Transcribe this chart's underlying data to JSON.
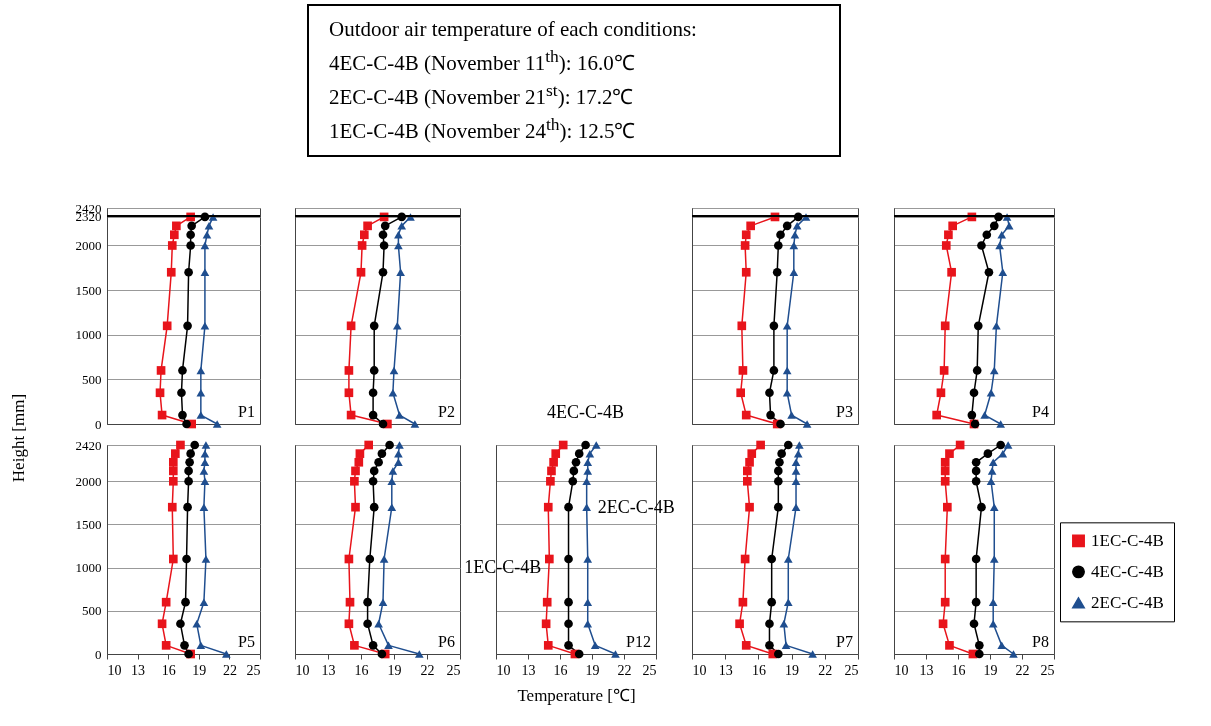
{
  "chart_data": [
    {
      "type": "line",
      "title": "P1",
      "ylabel": "Height [mm]",
      "annotations": [
        "Outdoor air temperature of each conditions:",
        "4EC-C-4B (November 11$^{th}$): 16.0℃",
        "2EC-C-4B (November 21$^{st}$): 17.2℃",
        "1EC-C-4B (November 24$^{th}$): 12.5℃"
      ],
      "xlim": [
        10,
        25
      ],
      "xticks": [
        10,
        13,
        16,
        19,
        22,
        25
      ],
      "ylim": [
        0,
        2420
      ],
      "yticks": [
        0,
        500,
        1000,
        1500,
        2000,
        2320,
        2420
      ],
      "grid": "y",
      "tick_labels": "y",
      "ref_lines": [
        {
          "axis": "y",
          "value": 2330
        }
      ],
      "series": [
        {
          "color": "#e8141b",
          "marker": "square",
          "x": [
            18.2,
            16.8,
            16.6,
            16.4,
            16.3,
            15.9,
            15.3,
            15.2,
            15.4,
            18.3
          ],
          "values": [
            2320,
            2220,
            2120,
            2000,
            1700,
            1100,
            600,
            350,
            100,
            0
          ]
        },
        {
          "color": "#000000",
          "marker": "circle",
          "x": [
            19.6,
            18.3,
            18.2,
            18.2,
            18.0,
            17.9,
            17.4,
            17.3,
            17.4,
            17.8
          ],
          "values": [
            2320,
            2220,
            2120,
            2000,
            1700,
            1100,
            600,
            350,
            100,
            0
          ]
        },
        {
          "color": "#1f4e8f",
          "marker": "triangle",
          "x": [
            20.4,
            20.0,
            19.8,
            19.6,
            19.6,
            19.6,
            19.2,
            19.2,
            19.2,
            20.8
          ],
          "values": [
            2320,
            2220,
            2120,
            2000,
            1700,
            1100,
            600,
            350,
            100,
            0
          ]
        }
      ]
    },
    {
      "type": "line",
      "title": "P2",
      "xlim": [
        10,
        25
      ],
      "xticks": [
        10,
        13,
        16,
        19,
        22,
        25
      ],
      "ylim": [
        0,
        2420
      ],
      "yticks": [
        0,
        500,
        1000,
        1500,
        2000,
        2320,
        2420
      ],
      "grid": "y",
      "tick_labels": false,
      "ref_lines": [
        {
          "axis": "y",
          "value": 2330
        }
      ],
      "series": [
        {
          "color": "#e8141b",
          "marker": "square",
          "x": [
            18.1,
            16.6,
            16.3,
            16.1,
            16.0,
            15.1,
            14.9,
            14.9,
            15.1,
            18.4
          ],
          "values": [
            2320,
            2220,
            2120,
            2000,
            1700,
            1100,
            600,
            350,
            100,
            0
          ]
        },
        {
          "color": "#000000",
          "marker": "circle",
          "x": [
            19.7,
            18.2,
            18.0,
            18.1,
            18.0,
            17.2,
            17.2,
            17.1,
            17.1,
            18.0
          ],
          "values": [
            2320,
            2220,
            2120,
            2000,
            1700,
            1100,
            600,
            350,
            100,
            0
          ]
        },
        {
          "color": "#1f4e8f",
          "marker": "triangle",
          "x": [
            20.5,
            19.7,
            19.4,
            19.4,
            19.6,
            19.3,
            19.0,
            18.9,
            19.5,
            20.9
          ],
          "values": [
            2320,
            2220,
            2120,
            2000,
            1700,
            1100,
            600,
            350,
            100,
            0
          ]
        }
      ]
    },
    {
      "type": "line",
      "title": "P3",
      "xlim": [
        10,
        25
      ],
      "xticks": [
        10,
        13,
        16,
        19,
        22,
        25
      ],
      "ylim": [
        0,
        2420
      ],
      "yticks": [
        0,
        500,
        1000,
        1500,
        2000,
        2320,
        2420
      ],
      "grid": "y",
      "tick_labels": false,
      "ref_lines": [
        {
          "axis": "y",
          "value": 2330
        }
      ],
      "series": [
        {
          "color": "#e8141b",
          "marker": "square",
          "x": [
            17.5,
            15.3,
            14.9,
            14.8,
            14.9,
            14.5,
            14.6,
            14.4,
            14.9,
            17.7
          ],
          "values": [
            2320,
            2220,
            2120,
            2000,
            1700,
            1100,
            600,
            350,
            100,
            0
          ]
        },
        {
          "color": "#000000",
          "marker": "circle",
          "x": [
            19.6,
            18.6,
            18.0,
            17.8,
            17.7,
            17.4,
            17.4,
            17.0,
            17.1,
            18.0
          ],
          "values": [
            2320,
            2220,
            2120,
            2000,
            1700,
            1100,
            600,
            350,
            100,
            0
          ]
        },
        {
          "color": "#1f4e8f",
          "marker": "triangle",
          "x": [
            20.3,
            19.5,
            19.3,
            19.2,
            19.2,
            18.6,
            18.6,
            18.6,
            19.0,
            20.4
          ],
          "values": [
            2320,
            2220,
            2120,
            2000,
            1700,
            1100,
            600,
            350,
            100,
            0
          ]
        }
      ]
    },
    {
      "type": "line",
      "title": "P4",
      "xlim": [
        10,
        25
      ],
      "xticks": [
        10,
        13,
        16,
        19,
        22,
        25
      ],
      "ylim": [
        0,
        2420
      ],
      "yticks": [
        0,
        500,
        1000,
        1500,
        2000,
        2320,
        2420
      ],
      "grid": "y",
      "tick_labels": false,
      "ref_lines": [
        {
          "axis": "y",
          "value": 2330
        }
      ],
      "series": [
        {
          "color": "#e8141b",
          "marker": "square",
          "x": [
            17.3,
            15.5,
            15.1,
            14.9,
            15.4,
            14.8,
            14.7,
            14.4,
            14.0,
            17.5
          ],
          "values": [
            2320,
            2220,
            2120,
            2000,
            1700,
            1100,
            600,
            350,
            100,
            0
          ]
        },
        {
          "color": "#000000",
          "marker": "circle",
          "x": [
            19.8,
            19.4,
            18.7,
            18.2,
            18.9,
            17.9,
            17.8,
            17.5,
            17.3,
            17.6
          ],
          "values": [
            2320,
            2220,
            2120,
            2000,
            1700,
            1100,
            600,
            350,
            100,
            0
          ]
        },
        {
          "color": "#1f4e8f",
          "marker": "triangle",
          "x": [
            20.6,
            20.8,
            20.1,
            19.9,
            20.2,
            19.6,
            19.4,
            19.1,
            18.5,
            20.0
          ],
          "values": [
            2320,
            2220,
            2120,
            2000,
            1700,
            1100,
            600,
            350,
            100,
            0
          ]
        }
      ]
    },
    {
      "type": "line",
      "title": "P5",
      "xlim": [
        10,
        25
      ],
      "xticks": [
        10,
        13,
        16,
        19,
        22,
        25
      ],
      "ylim": [
        0,
        2420
      ],
      "yticks": [
        0,
        500,
        1000,
        1500,
        2000,
        2420
      ],
      "grid": "y",
      "series": [
        {
          "color": "#e8141b",
          "marker": "square",
          "x": [
            17.2,
            16.7,
            16.5,
            16.5,
            16.5,
            16.4,
            16.5,
            15.8,
            15.4,
            15.8,
            18.2
          ],
          "values": [
            2420,
            2320,
            2220,
            2120,
            2000,
            1700,
            1100,
            600,
            350,
            100,
            0
          ]
        },
        {
          "color": "#000000",
          "marker": "circle",
          "x": [
            18.6,
            18.2,
            18.1,
            18.0,
            18.0,
            17.9,
            17.8,
            17.7,
            17.2,
            17.6,
            18.0
          ],
          "values": [
            2420,
            2320,
            2220,
            2120,
            2000,
            1700,
            1100,
            600,
            350,
            100,
            0
          ]
        },
        {
          "color": "#1f4e8f",
          "marker": "triangle",
          "x": [
            19.7,
            19.6,
            19.6,
            19.5,
            19.6,
            19.5,
            19.7,
            19.5,
            18.8,
            19.2,
            21.7
          ],
          "values": [
            2420,
            2320,
            2220,
            2120,
            2000,
            1700,
            1100,
            600,
            350,
            100,
            0
          ]
        }
      ]
    },
    {
      "type": "line",
      "title": "P6",
      "xlim": [
        10,
        25
      ],
      "xticks": [
        10,
        13,
        16,
        19,
        22,
        25
      ],
      "ylim": [
        0,
        2420
      ],
      "yticks": [
        0,
        500,
        1000,
        1500,
        2000,
        2420
      ],
      "grid": "y",
      "tick_labels": "x",
      "series": [
        {
          "color": "#e8141b",
          "marker": "square",
          "x": [
            16.7,
            15.9,
            15.8,
            15.5,
            15.4,
            15.5,
            14.9,
            15.0,
            14.9,
            15.4,
            18.2
          ],
          "values": [
            2420,
            2320,
            2220,
            2120,
            2000,
            1700,
            1100,
            600,
            350,
            100,
            0
          ]
        },
        {
          "color": "#000000",
          "marker": "circle",
          "x": [
            18.6,
            17.9,
            17.6,
            17.2,
            17.1,
            17.2,
            16.8,
            16.6,
            16.6,
            17.1,
            17.9
          ],
          "values": [
            2420,
            2320,
            2220,
            2120,
            2000,
            1700,
            1100,
            600,
            350,
            100,
            0
          ]
        },
        {
          "color": "#1f4e8f",
          "marker": "triangle",
          "x": [
            19.5,
            19.4,
            19.4,
            18.9,
            18.8,
            18.8,
            18.1,
            18.0,
            17.6,
            18.5,
            21.3
          ],
          "values": [
            2420,
            2320,
            2220,
            2120,
            2000,
            1700,
            1100,
            600,
            350,
            100,
            0
          ]
        }
      ]
    },
    {
      "type": "line",
      "title": "P12",
      "xlabel": "Temperature [℃]",
      "annotations": [
        {
          "text": "4EC-C-4B",
          "x": 18.4,
          "y": 2420
        },
        {
          "text": "2EC-C-4B",
          "x": 18.6,
          "y": 1900
        },
        {
          "text": "1EC-C-4B",
          "x": 15.0,
          "y": 1300
        }
      ],
      "xlim": [
        10,
        25
      ],
      "xticks": [
        10,
        13,
        16,
        19,
        22,
        25
      ],
      "ylim": [
        0,
        2420
      ],
      "yticks": [
        0,
        500,
        1000,
        1500,
        2000,
        2420
      ],
      "grid": "y",
      "tick_labels": "x",
      "series": [
        {
          "color": "#e8141b",
          "marker": "square",
          "x": [
            16.3,
            15.6,
            15.4,
            15.2,
            15.1,
            14.9,
            15.0,
            14.8,
            14.7,
            14.9,
            17.4
          ],
          "values": [
            2420,
            2320,
            2220,
            2120,
            2000,
            1700,
            1100,
            600,
            350,
            100,
            0
          ]
        },
        {
          "color": "#000000",
          "marker": "circle",
          "x": [
            18.4,
            17.8,
            17.5,
            17.3,
            17.2,
            16.8,
            16.8,
            16.8,
            16.8,
            16.8,
            17.8
          ],
          "values": [
            2420,
            2320,
            2220,
            2120,
            2000,
            1700,
            1100,
            600,
            350,
            100,
            0
          ]
        },
        {
          "color": "#1f4e8f",
          "marker": "triangle",
          "x": [
            19.4,
            18.8,
            18.6,
            18.6,
            18.5,
            18.5,
            18.6,
            18.6,
            18.6,
            19.3,
            21.2
          ],
          "values": [
            2420,
            2320,
            2220,
            2120,
            2000,
            1700,
            1100,
            600,
            350,
            100,
            0
          ]
        }
      ]
    },
    {
      "type": "line",
      "title": "P7",
      "xlim": [
        10,
        25
      ],
      "xticks": [
        10,
        13,
        16,
        19,
        22,
        25
      ],
      "ylim": [
        0,
        2420
      ],
      "yticks": [
        0,
        500,
        1000,
        1500,
        2000,
        2420
      ],
      "grid": "y",
      "tick_labels": "x",
      "series": [
        {
          "color": "#e8141b",
          "marker": "square",
          "x": [
            16.2,
            15.4,
            15.2,
            15.0,
            15.0,
            15.2,
            14.8,
            14.6,
            14.3,
            14.9,
            17.3
          ],
          "values": [
            2420,
            2320,
            2220,
            2120,
            2000,
            1700,
            1100,
            600,
            350,
            100,
            0
          ]
        },
        {
          "color": "#000000",
          "marker": "circle",
          "x": [
            18.7,
            18.1,
            17.9,
            17.8,
            17.8,
            17.8,
            17.2,
            17.2,
            17.0,
            17.0,
            17.8
          ],
          "values": [
            2420,
            2320,
            2220,
            2120,
            2000,
            1700,
            1100,
            600,
            350,
            100,
            0
          ]
        },
        {
          "color": "#1f4e8f",
          "marker": "triangle",
          "x": [
            19.7,
            19.6,
            19.4,
            19.4,
            19.4,
            19.4,
            18.7,
            18.7,
            18.3,
            18.5,
            20.9
          ],
          "values": [
            2420,
            2320,
            2220,
            2120,
            2000,
            1700,
            1100,
            600,
            350,
            100,
            0
          ]
        }
      ]
    },
    {
      "type": "line",
      "title": "P8",
      "xlim": [
        10,
        25
      ],
      "xticks": [
        10,
        13,
        16,
        19,
        22,
        25
      ],
      "ylim": [
        0,
        2420
      ],
      "yticks": [
        0,
        500,
        1000,
        1500,
        2000,
        2420
      ],
      "grid": "y",
      "tick_labels": "x",
      "legend": "right",
      "series": [
        {
          "name": "1EC-C-4B",
          "color": "#e8141b",
          "marker": "square",
          "x": [
            16.2,
            15.2,
            14.8,
            14.8,
            14.8,
            15.0,
            14.8,
            14.8,
            14.6,
            15.2,
            17.4
          ],
          "values": [
            2420,
            2320,
            2220,
            2120,
            2000,
            1700,
            1100,
            600,
            350,
            100,
            0
          ]
        },
        {
          "name": "4EC-C-4B",
          "color": "#000000",
          "marker": "circle",
          "x": [
            20.0,
            18.8,
            17.7,
            17.7,
            17.7,
            18.2,
            17.7,
            17.7,
            17.5,
            18.0,
            18.0
          ],
          "values": [
            2420,
            2320,
            2220,
            2120,
            2000,
            1700,
            1100,
            600,
            350,
            100,
            0
          ]
        },
        {
          "name": "2EC-C-4B",
          "color": "#1f4e8f",
          "marker": "triangle",
          "x": [
            20.7,
            20.2,
            19.3,
            19.2,
            19.1,
            19.4,
            19.4,
            19.3,
            19.3,
            20.1,
            21.2
          ],
          "values": [
            2420,
            2320,
            2220,
            2120,
            2000,
            1700,
            1100,
            600,
            350,
            100,
            0
          ]
        }
      ]
    }
  ]
}
